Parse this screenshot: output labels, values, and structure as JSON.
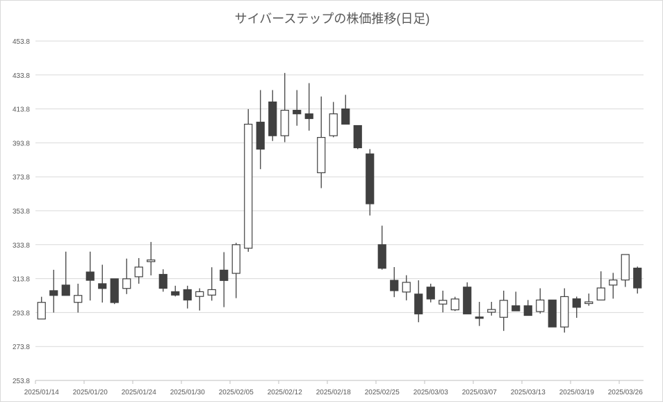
{
  "chart_data": {
    "type": "candlestick",
    "title": "サイバーステップの株価推移(日足)",
    "xlabel": "",
    "ylabel": "",
    "ylim": [
      253.8,
      453.8
    ],
    "yticks": [
      "253.8",
      "273.8",
      "293.8",
      "313.8",
      "333.8",
      "353.8",
      "373.8",
      "393.8",
      "413.8",
      "433.8",
      "453.8"
    ],
    "xtick_labels": [
      "2025/01/14",
      "2025/01/20",
      "2025/01/24",
      "2025/01/30",
      "2025/02/05",
      "2025/02/12",
      "2025/02/18",
      "2025/02/25",
      "2025/03/03",
      "2025/03/07",
      "2025/03/13",
      "2025/03/19",
      "2025/03/26"
    ],
    "xtick_every": 4,
    "grid": true,
    "colors": {
      "up_fill": "#ffffff",
      "down_fill": "#404040",
      "stroke": "#404040",
      "grid": "#d9d9d9"
    },
    "ohlc": [
      [
        290.0,
        303.1,
        290.0,
        299.8
      ],
      [
        306.7,
        319.0,
        293.8,
        303.9
      ],
      [
        310.0,
        329.7,
        303.9,
        303.9
      ],
      [
        299.8,
        310.8,
        293.8,
        303.9
      ],
      [
        317.7,
        329.7,
        300.9,
        312.8
      ],
      [
        310.8,
        322.0,
        299.7,
        308.0
      ],
      [
        313.7,
        313.7,
        298.8,
        299.7
      ],
      [
        308.0,
        325.6,
        304.7,
        313.7
      ],
      [
        314.9,
        325.9,
        310.8,
        320.6
      ],
      [
        323.8,
        335.4,
        315.7,
        324.8
      ],
      [
        316.3,
        319.3,
        306.1,
        308.1
      ],
      [
        306.1,
        309.6,
        303.3,
        304.1
      ],
      [
        307.3,
        309.6,
        296.2,
        301.2
      ],
      [
        303.3,
        308.1,
        295.0,
        306.1
      ],
      [
        304.1,
        320.5,
        300.8,
        307.3
      ],
      [
        318.8,
        329.4,
        297.0,
        312.7
      ],
      [
        316.9,
        334.9,
        302.3,
        333.8
      ],
      [
        331.7,
        413.7,
        329.6,
        404.8
      ],
      [
        406.0,
        424.9,
        378.3,
        390.1
      ],
      [
        417.9,
        424.9,
        394.9,
        398.0
      ],
      [
        398.0,
        435.0,
        394.2,
        413.0
      ],
      [
        413.0,
        424.9,
        403.9,
        410.9
      ],
      [
        410.9,
        429.0,
        401.0,
        408.1
      ],
      [
        376.2,
        421.1,
        367.1,
        397.0
      ],
      [
        398.0,
        417.9,
        397.1,
        410.9
      ],
      [
        413.8,
        422.1,
        404.8,
        404.8
      ],
      [
        404.0,
        404.0,
        390.1,
        390.9
      ],
      [
        387.3,
        390.1,
        351.0,
        357.9
      ],
      [
        333.8,
        345.0,
        319.1,
        319.9
      ],
      [
        312.8,
        320.6,
        302.9,
        306.7
      ],
      [
        305.9,
        315.8,
        301.0,
        311.6
      ],
      [
        304.7,
        312.8,
        288.1,
        293.0
      ],
      [
        308.8,
        310.8,
        299.8,
        301.8
      ],
      [
        298.8,
        306.7,
        293.9,
        301.0
      ],
      [
        295.4,
        303.1,
        294.7,
        301.8
      ],
      [
        308.8,
        311.6,
        293.0,
        293.0
      ],
      [
        291.2,
        300.1,
        285.9,
        290.6
      ],
      [
        294.0,
        300.1,
        292.0,
        295.6
      ],
      [
        291.0,
        306.7,
        283.0,
        301.0
      ],
      [
        297.8,
        306.1,
        294.8,
        294.8
      ],
      [
        297.8,
        301.2,
        292.1,
        292.1
      ],
      [
        294.4,
        308.1,
        293.2,
        301.2
      ],
      [
        301.2,
        301.2,
        285.3,
        285.3
      ],
      [
        285.3,
        308.1,
        282.0,
        303.2
      ],
      [
        301.9,
        303.2,
        290.7,
        296.9
      ],
      [
        299.1,
        305.0,
        297.8,
        300.1
      ],
      [
        301.2,
        318.1,
        301.2,
        308.3
      ],
      [
        310.0,
        317.2,
        302.0,
        313.0
      ],
      [
        313.0,
        328.0,
        308.9,
        328.0
      ],
      [
        320.0,
        320.9,
        305.0,
        308.3
      ]
    ]
  }
}
